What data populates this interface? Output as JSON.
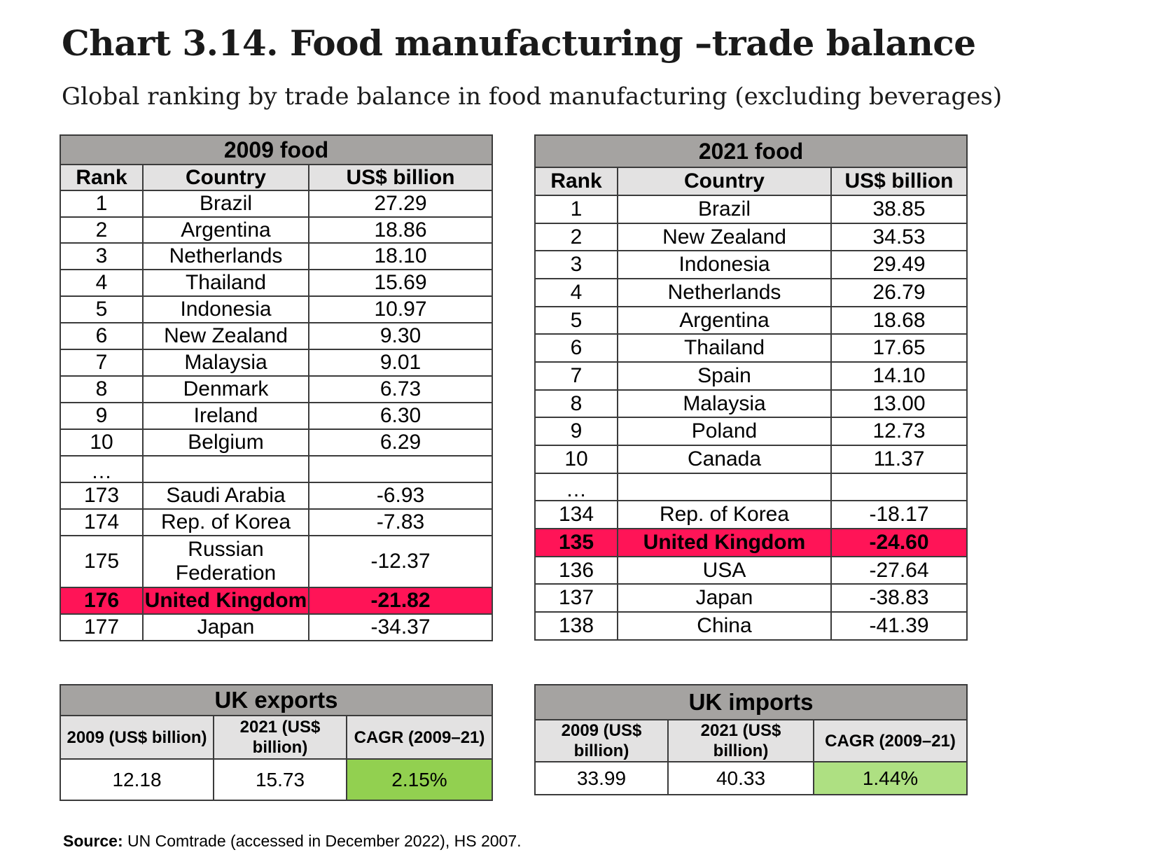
{
  "title": "Chart 3.14. Food manufacturing –trade balance",
  "subtitle": "Global ranking by trade balance in food manufacturing (excluding beverages)",
  "table_2009": {
    "heading": "2009 food",
    "columns": [
      "Rank",
      "Country",
      "US$ billion"
    ],
    "rows": [
      [
        "1",
        "Brazil",
        "27.29"
      ],
      [
        "2",
        "Argentina",
        "18.86"
      ],
      [
        "3",
        "Netherlands",
        "18.10"
      ],
      [
        "4",
        "Thailand",
        "15.69"
      ],
      [
        "5",
        "Indonesia",
        "10.97"
      ],
      [
        "6",
        "New Zealand",
        "9.30"
      ],
      [
        "7",
        "Malaysia",
        "9.01"
      ],
      [
        "8",
        "Denmark",
        "6.73"
      ],
      [
        "9",
        "Ireland",
        "6.30"
      ],
      [
        "10",
        "Belgium",
        "6.29"
      ],
      [
        "…",
        "",
        ""
      ],
      [
        "173",
        "Saudi Arabia",
        "-6.93"
      ],
      [
        "174",
        "Rep. of Korea",
        "-7.83"
      ],
      [
        "175",
        "Russian Federation",
        "-12.37"
      ],
      [
        "176",
        "United Kingdom",
        "-21.82"
      ],
      [
        "177",
        "Japan",
        "-34.37"
      ]
    ]
  },
  "table_2021": {
    "heading": "2021 food",
    "columns": [
      "Rank",
      "Country",
      "US$ billion"
    ],
    "rows": [
      [
        "1",
        "Brazil",
        "38.85"
      ],
      [
        "2",
        "New Zealand",
        "34.53"
      ],
      [
        "3",
        "Indonesia",
        "29.49"
      ],
      [
        "4",
        "Netherlands",
        "26.79"
      ],
      [
        "5",
        "Argentina",
        "18.68"
      ],
      [
        "6",
        "Thailand",
        "17.65"
      ],
      [
        "7",
        "Spain",
        "14.10"
      ],
      [
        "8",
        "Malaysia",
        "13.00"
      ],
      [
        "9",
        "Poland",
        "12.73"
      ],
      [
        "10",
        "Canada",
        "11.37"
      ],
      [
        "…",
        "",
        ""
      ],
      [
        "134",
        "Rep. of Korea",
        "-18.17"
      ],
      [
        "135",
        "United Kingdom",
        "-24.60"
      ],
      [
        "136",
        "USA",
        "-27.64"
      ],
      [
        "137",
        "Japan",
        "-38.83"
      ],
      [
        "138",
        "China",
        "-41.39"
      ]
    ]
  },
  "uk_exports": {
    "heading": "UK exports",
    "columns": [
      "2009 (US$ billion)",
      "2021 (US$ billion)",
      "CAGR (2009–21)"
    ],
    "values": [
      "12.18",
      "15.73",
      "2.15%"
    ]
  },
  "uk_imports": {
    "heading": "UK imports",
    "columns": [
      "2009 (US$ billion)",
      "2021 (US$ billion)",
      "CAGR (2009–21)"
    ],
    "values": [
      "33.99",
      "40.33",
      "1.44%"
    ]
  },
  "source": {
    "label": "Source:",
    "text": " UN Comtrade (accessed in December 2022), HS 2007."
  },
  "colors": {
    "header_group": "#a5a3a1",
    "header_column": "#e3e2e2",
    "uk_highlight": "#ff1457",
    "cagr_exports": "#92d050",
    "cagr_imports": "#aee082"
  }
}
